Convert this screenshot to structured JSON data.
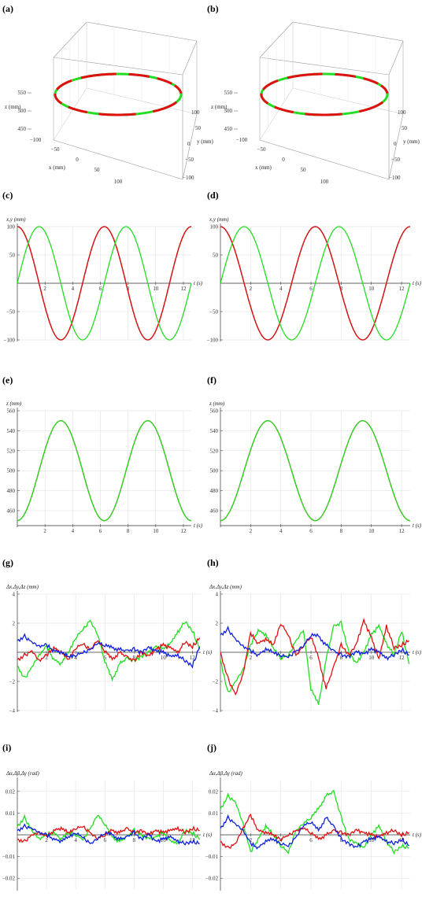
{
  "panel_labels": [
    "(a)",
    "(b)",
    "(c)",
    "(d)",
    "(e)",
    "(f)",
    "(g)",
    "(h)",
    "(i)",
    "(j)"
  ],
  "colors": {
    "red": "#e01010",
    "green": "#22dd22",
    "blue": "#1020dd",
    "orange": "#e07020",
    "axis": "#333333",
    "grid": "#dddddd"
  },
  "chart_data": [
    {
      "id": "a",
      "type": "line3d",
      "axes": {
        "x_label": "x (mm)",
        "y_label": "y (mm)",
        "z_label": "z (mm)",
        "x_ticks": [
          "−100",
          "−50",
          "0",
          "50",
          "100"
        ],
        "y_ticks": [
          "100",
          "50",
          "0",
          "−50",
          "−100"
        ],
        "z_ticks": [
          "550",
          "500",
          "450"
        ],
        "xlim": [
          -100,
          100
        ],
        "ylim": [
          -100,
          100
        ],
        "zlim": [
          450,
          550
        ]
      },
      "series": [
        {
          "color": "red",
          "shape": "ellipse",
          "x_amplitude": 100,
          "y_amplitude": 100,
          "z_range": [
            450,
            550
          ]
        },
        {
          "color": "green",
          "shape": "ellipse",
          "x_amplitude": 100,
          "y_amplitude": 100,
          "z_range": [
            450,
            550
          ]
        }
      ]
    },
    {
      "id": "b",
      "type": "line3d",
      "axes": {
        "x_label": "x (mm)",
        "y_label": "y (mm)",
        "z_label": "z (mm)",
        "x_ticks": [
          "−100",
          "−50",
          "0",
          "50",
          "100"
        ],
        "y_ticks": [
          "100",
          "50",
          "0",
          "−50",
          "−100"
        ],
        "z_ticks": [
          "550",
          "500",
          "450"
        ],
        "xlim": [
          -100,
          100
        ],
        "ylim": [
          -100,
          100
        ],
        "zlim": [
          450,
          550
        ]
      },
      "series": [
        {
          "color": "red",
          "shape": "ellipse"
        },
        {
          "color": "green",
          "shape": "ellipse"
        }
      ]
    },
    {
      "id": "c",
      "type": "line",
      "ylabel": "x,y (mm)",
      "xlabel": "t (s)",
      "xlim": [
        0,
        12.57
      ],
      "ylim": [
        -100,
        100
      ],
      "x_ticks": [
        "2",
        "4",
        "6",
        "8",
        "10",
        "12"
      ],
      "y_ticks": [
        "100",
        "50",
        "−50",
        "−100"
      ],
      "series": [
        {
          "color": "blue",
          "fn": "100cos(t)"
        },
        {
          "color": "orange",
          "fn": "100cos(t)"
        },
        {
          "color": "red",
          "fn": "100cos(t)"
        },
        {
          "color": "green",
          "fn": "100sin(t)"
        }
      ]
    },
    {
      "id": "d",
      "type": "line",
      "ylabel": "x,y (mm)",
      "xlabel": "t (s)",
      "xlim": [
        0,
        12.57
      ],
      "ylim": [
        -100,
        100
      ],
      "x_ticks": [
        "2",
        "4",
        "6",
        "8",
        "10",
        "12"
      ],
      "y_ticks": [
        "100",
        "50",
        "−50",
        "−100"
      ],
      "series": [
        {
          "color": "blue",
          "fn": "100cos(t)"
        },
        {
          "color": "orange",
          "fn": "100cos(t)"
        },
        {
          "color": "red",
          "fn": "100cos(t)"
        },
        {
          "color": "green",
          "fn": "100sin(t)"
        }
      ]
    },
    {
      "id": "e",
      "type": "line",
      "ylabel": "z (mm)",
      "xlabel": "t (s)",
      "xlim": [
        0,
        12.57
      ],
      "ylim": [
        445,
        560
      ],
      "x_ticks": [
        "2",
        "4",
        "6",
        "8",
        "10",
        "12"
      ],
      "y_ticks": [
        "560",
        "540",
        "520",
        "500",
        "480",
        "460"
      ],
      "series": [
        {
          "color": "red",
          "fn": "500-50cos(t)"
        },
        {
          "color": "green",
          "fn": "500-50cos(t)"
        }
      ]
    },
    {
      "id": "f",
      "type": "line",
      "ylabel": "z (mm)",
      "xlabel": "t (s)",
      "xlim": [
        0,
        12.57
      ],
      "ylim": [
        445,
        560
      ],
      "x_ticks": [
        "2",
        "4",
        "6",
        "8",
        "10",
        "12"
      ],
      "y_ticks": [
        "560",
        "540",
        "520",
        "500",
        "480",
        "460"
      ],
      "series": [
        {
          "color": "red",
          "fn": "500-50cos(t)"
        },
        {
          "color": "green",
          "fn": "500-50cos(t)"
        }
      ]
    },
    {
      "id": "g",
      "type": "line",
      "ylabel": "Δx,Δy,Δz (mm)",
      "xlabel": "t (s)",
      "xlim": [
        0,
        12.57
      ],
      "ylim": [
        -4,
        4
      ],
      "x_ticks": [
        "2",
        "4",
        "6",
        "8",
        "10",
        "12"
      ],
      "y_ticks": [
        "4",
        "2",
        "−2",
        "−4"
      ],
      "series": [
        {
          "color": "green",
          "x": [
            0,
            0.5,
            1,
            1.5,
            2,
            2.5,
            3,
            3.5,
            4,
            4.5,
            5,
            5.5,
            6,
            6.5,
            7,
            7.5,
            8,
            8.5,
            9,
            9.5,
            10,
            10.5,
            11,
            11.5,
            12,
            12.5
          ],
          "y": [
            -0.9,
            -1.8,
            -1.0,
            -0.2,
            0.4,
            -0.5,
            -0.8,
            0.0,
            1.0,
            1.6,
            2.2,
            1.2,
            -0.6,
            -1.9,
            -0.8,
            -0.4,
            -0.6,
            -0.3,
            0.0,
            0.4,
            0.2,
            0.6,
            1.4,
            2.1,
            1.5,
            0.2
          ]
        },
        {
          "color": "red",
          "x": [
            0,
            0.5,
            1,
            1.5,
            2,
            2.5,
            3,
            3.5,
            4,
            4.5,
            5,
            5.5,
            6,
            6.5,
            7,
            7.5,
            8,
            8.5,
            9,
            9.5,
            10,
            10.5,
            11,
            11.5,
            12,
            12.5
          ],
          "y": [
            -0.5,
            -0.2,
            0.1,
            -0.6,
            -0.2,
            0.3,
            0.0,
            -0.5,
            0.3,
            0.6,
            0.2,
            0.8,
            0.1,
            -0.5,
            0.0,
            -0.3,
            -0.6,
            0.0,
            -0.3,
            0.2,
            0.5,
            0.3,
            0.0,
            0.7,
            0.4,
            1.0
          ]
        },
        {
          "color": "blue",
          "x": [
            0,
            0.5,
            1,
            1.5,
            2,
            2.5,
            3,
            3.5,
            4,
            4.5,
            5,
            5.5,
            6,
            6.5,
            7,
            7.5,
            8,
            8.5,
            9,
            9.5,
            10,
            10.5,
            11,
            11.5,
            12,
            12.5
          ],
          "y": [
            0.8,
            1.1,
            0.7,
            0.4,
            0.5,
            0.1,
            0.0,
            -0.3,
            -0.2,
            0.0,
            0.2,
            0.6,
            0.5,
            0.3,
            0.2,
            0.1,
            0.2,
            0.0,
            0.3,
            0.1,
            0.0,
            -0.3,
            -0.2,
            -0.6,
            -0.9,
            0.4
          ]
        }
      ]
    },
    {
      "id": "h",
      "type": "line",
      "ylabel": "Δx,Δy,Δz (mm)",
      "xlabel": "t (s)",
      "xlim": [
        0,
        12.57
      ],
      "ylim": [
        -4,
        4
      ],
      "x_ticks": [
        "2",
        "4",
        "6",
        "8",
        "10",
        "12"
      ],
      "y_ticks": [
        "4",
        "2",
        "−2",
        "−4"
      ],
      "series": [
        {
          "color": "green",
          "x": [
            0,
            0.5,
            1,
            1.5,
            2,
            2.5,
            3,
            3.5,
            4,
            4.5,
            5,
            5.5,
            6,
            6.5,
            7,
            7.5,
            8,
            8.5,
            9,
            9.5,
            10,
            10.5,
            11,
            11.5,
            12,
            12.5
          ],
          "y": [
            -0.5,
            -2.8,
            -2.0,
            -1.2,
            0.5,
            1.5,
            1.2,
            0.3,
            -0.4,
            -0.2,
            0.8,
            1.5,
            -2.5,
            -3.6,
            -0.5,
            1.8,
            2.0,
            0.0,
            -0.8,
            0.0,
            1.2,
            1.8,
            0.6,
            -0.2,
            1.5,
            -0.8
          ]
        },
        {
          "color": "red",
          "x": [
            0,
            0.5,
            1,
            1.5,
            2,
            2.5,
            3,
            3.5,
            4,
            4.5,
            5,
            5.5,
            6,
            6.5,
            7,
            7.5,
            8,
            8.5,
            9,
            9.5,
            10,
            10.5,
            11,
            11.5,
            12,
            12.5
          ],
          "y": [
            0.0,
            -1.8,
            -2.9,
            -1.5,
            1.3,
            0.6,
            0.9,
            0.5,
            2.0,
            1.2,
            -0.2,
            0.4,
            1.1,
            -0.4,
            -2.5,
            -1.0,
            0.5,
            -0.2,
            0.5,
            2.2,
            1.0,
            -0.5,
            1.8,
            0.3,
            0.5,
            0.8
          ]
        },
        {
          "color": "blue",
          "x": [
            0,
            0.5,
            1,
            1.5,
            2,
            2.5,
            3,
            3.5,
            4,
            4.5,
            5,
            5.5,
            6,
            6.5,
            7,
            7.5,
            8,
            8.5,
            9,
            9.5,
            10,
            10.5,
            11,
            11.5,
            12,
            12.5
          ],
          "y": [
            1.2,
            1.6,
            0.9,
            0.4,
            0.1,
            -0.2,
            0.2,
            0.0,
            -0.2,
            -0.3,
            0.1,
            0.4,
            1.2,
            1.1,
            0.5,
            0.1,
            -0.2,
            -0.3,
            0.0,
            -0.1,
            0.2,
            0.0,
            -0.4,
            -0.2,
            0.2,
            -0.2
          ]
        }
      ]
    },
    {
      "id": "i",
      "type": "line",
      "ylabel": "Δα,Δβ,Δγ (rad)",
      "xlabel": "t (s)",
      "xlim": [
        0,
        12.57
      ],
      "ylim": [
        -0.025,
        0.025
      ],
      "x_ticks": [
        "2",
        "4",
        "6",
        "8",
        "10",
        "12"
      ],
      "y_ticks": [
        "0.02",
        "0.01",
        "−0.01",
        "−0.02"
      ],
      "series": [
        {
          "color": "green",
          "x": [
            0,
            0.5,
            1,
            1.5,
            2,
            2.5,
            3,
            3.5,
            4,
            4.5,
            5,
            5.5,
            6,
            6.5,
            7,
            7.5,
            8,
            8.5,
            9,
            9.5,
            10,
            10.5,
            11,
            11.5,
            12,
            12.5
          ],
          "y": [
            0.004,
            0.008,
            0.002,
            -0.002,
            0.0,
            0.001,
            -0.002,
            0.001,
            0.0,
            -0.002,
            0.003,
            0.009,
            0.005,
            -0.001,
            -0.003,
            -0.001,
            0.002,
            0.0,
            -0.002,
            -0.001,
            0.001,
            -0.003,
            -0.004,
            0.002,
            0.001,
            -0.002
          ]
        },
        {
          "color": "red",
          "x": [
            0,
            0.5,
            1,
            1.5,
            2,
            2.5,
            3,
            3.5,
            4,
            4.5,
            5,
            5.5,
            6,
            6.5,
            7,
            7.5,
            8,
            8.5,
            9,
            9.5,
            10,
            10.5,
            11,
            11.5,
            12,
            12.5
          ],
          "y": [
            -0.002,
            -0.003,
            0.0,
            0.001,
            -0.001,
            0.002,
            0.003,
            0.001,
            0.003,
            0.004,
            0.001,
            -0.002,
            0.0,
            0.002,
            0.001,
            0.003,
            0.001,
            0.002,
            0.0,
            0.002,
            0.001,
            0.002,
            0.003,
            0.001,
            0.003,
            0.002
          ]
        },
        {
          "color": "blue",
          "x": [
            0,
            0.5,
            1,
            1.5,
            2,
            2.5,
            3,
            3.5,
            4,
            4.5,
            5,
            5.5,
            6,
            6.5,
            7,
            7.5,
            8,
            8.5,
            9,
            9.5,
            10,
            10.5,
            11,
            11.5,
            12,
            12.5
          ],
          "y": [
            0.002,
            0.004,
            0.003,
            0.001,
            0.0,
            -0.002,
            -0.003,
            -0.001,
            0.001,
            -0.001,
            -0.004,
            -0.002,
            0.001,
            0.0,
            -0.002,
            -0.001,
            0.001,
            -0.002,
            0.0,
            -0.003,
            -0.002,
            -0.001,
            -0.003,
            -0.004,
            -0.003,
            -0.004
          ]
        }
      ]
    },
    {
      "id": "j",
      "type": "line",
      "ylabel": "Δα,Δβ,Δγ (rad)",
      "xlabel": "t (s)",
      "xlim": [
        0,
        12.57
      ],
      "ylim": [
        -0.025,
        0.025
      ],
      "x_ticks": [
        "2",
        "4",
        "6",
        "8",
        "10",
        "12"
      ],
      "y_ticks": [
        "0.02",
        "0.01",
        "−0.01",
        "−0.02"
      ],
      "series": [
        {
          "color": "green",
          "x": [
            0,
            0.5,
            1,
            1.5,
            2,
            2.5,
            3,
            3.5,
            4,
            4.5,
            5,
            5.5,
            6,
            6.5,
            7,
            7.5,
            8,
            8.5,
            9,
            9.5,
            10,
            10.5,
            11,
            11.5,
            12,
            12.5
          ],
          "y": [
            0.012,
            0.018,
            0.015,
            0.005,
            -0.008,
            -0.002,
            0.004,
            0.0,
            -0.005,
            -0.008,
            0.002,
            0.005,
            0.008,
            0.012,
            0.018,
            0.02,
            0.008,
            -0.002,
            -0.004,
            -0.006,
            0.0,
            0.004,
            -0.003,
            -0.008,
            -0.005,
            -0.006
          ]
        },
        {
          "color": "red",
          "x": [
            0,
            0.5,
            1,
            1.5,
            2,
            2.5,
            3,
            3.5,
            4,
            4.5,
            5,
            5.5,
            6,
            6.5,
            7,
            7.5,
            8,
            8.5,
            9,
            9.5,
            10,
            10.5,
            11,
            11.5,
            12,
            12.5
          ],
          "y": [
            -0.003,
            -0.006,
            -0.004,
            0.003,
            0.009,
            0.002,
            0.001,
            0.0,
            -0.002,
            0.0,
            0.002,
            0.003,
            0.001,
            -0.002,
            0.0,
            0.002,
            0.001,
            0.0,
            0.002,
            0.001,
            0.0,
            -0.001,
            0.001,
            0.002,
            0.0,
            0.001
          ]
        },
        {
          "color": "blue",
          "x": [
            0,
            0.5,
            1,
            1.5,
            2,
            2.5,
            3,
            3.5,
            4,
            4.5,
            5,
            5.5,
            6,
            6.5,
            7,
            7.5,
            8,
            8.5,
            9,
            9.5,
            10,
            10.5,
            11,
            11.5,
            12,
            12.5
          ],
          "y": [
            0.003,
            0.008,
            0.005,
            0.002,
            -0.004,
            -0.006,
            -0.003,
            -0.002,
            -0.004,
            -0.005,
            -0.001,
            0.004,
            0.006,
            0.002,
            0.008,
            0.004,
            -0.002,
            -0.004,
            -0.006,
            -0.003,
            -0.002,
            -0.001,
            -0.003,
            -0.004,
            -0.002,
            -0.005
          ]
        }
      ]
    }
  ]
}
